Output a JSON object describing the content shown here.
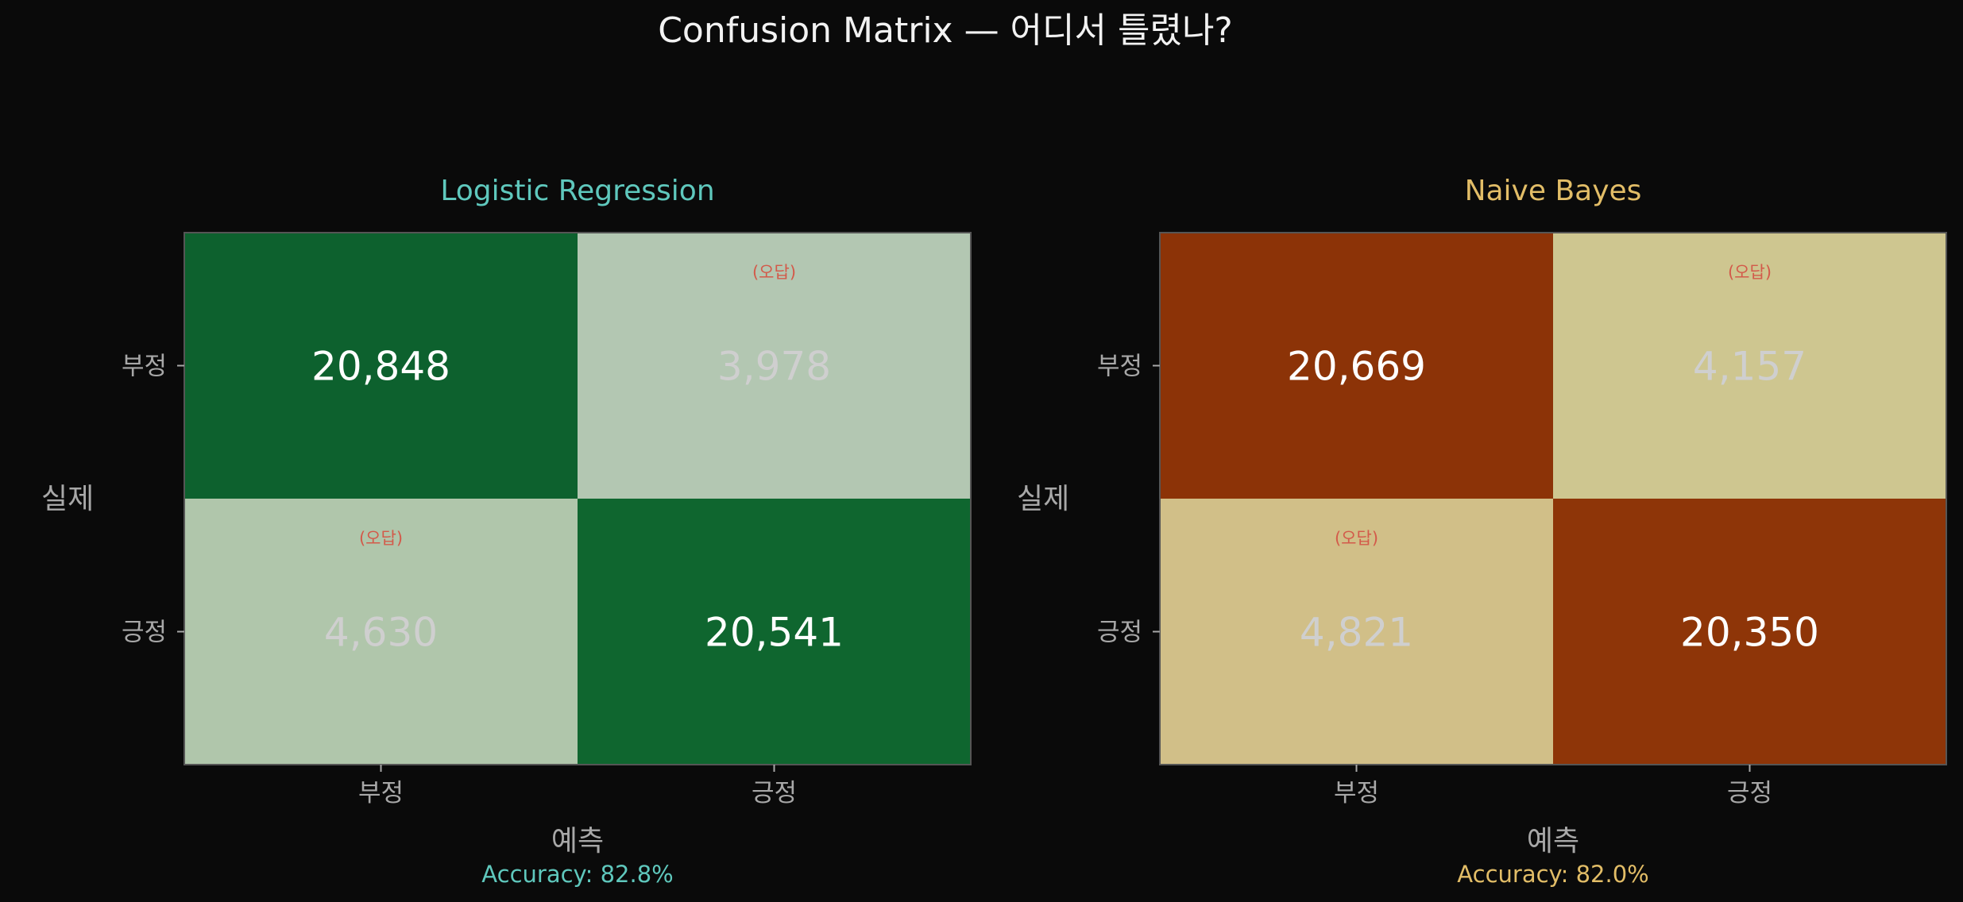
{
  "figure": {
    "title": "Confusion Matrix — 어디서 틀렸나?",
    "background": "#0a0a0a",
    "text_color": "#f2f2f2",
    "axis_color": "#a8a8a8",
    "error_color": "#d35a4a",
    "error_note": "(오답)"
  },
  "chart_data": [
    {
      "type": "heatmap",
      "title": "Logistic Regression",
      "title_color": "#5fc8bd",
      "xlabel": "예측",
      "ylabel": "실제",
      "x_categories": [
        "부정",
        "긍정"
      ],
      "y_categories": [
        "부정",
        "긍정"
      ],
      "values": [
        [
          20848,
          3978
        ],
        [
          4630,
          20541
        ]
      ],
      "value_labels": [
        [
          "20,848",
          "3,978"
        ],
        [
          "4,630",
          "20,541"
        ]
      ],
      "cell_colors": [
        [
          "#0d612e",
          "#b3c7b2"
        ],
        [
          "#b0c6ab",
          "#0f662f"
        ]
      ],
      "accuracy_label": "Accuracy: 82.8%",
      "accuracy": 82.8,
      "accuracy_color": "#5fc8bd"
    },
    {
      "type": "heatmap",
      "title": "Naive Bayes",
      "title_color": "#e2bd67",
      "xlabel": "예측",
      "ylabel": "실제",
      "x_categories": [
        "부정",
        "긍정"
      ],
      "y_categories": [
        "부정",
        "긍정"
      ],
      "values": [
        [
          20669,
          4157
        ],
        [
          4821,
          20350
        ]
      ],
      "value_labels": [
        [
          "20,669",
          "4,157"
        ],
        [
          "4,821",
          "20,350"
        ]
      ],
      "cell_colors": [
        [
          "#8c3307",
          "#cec690"
        ],
        [
          "#d1bf88",
          "#8e3508"
        ]
      ],
      "accuracy_label": "Accuracy: 82.0%",
      "accuracy": 82.0,
      "accuracy_color": "#e2bd67"
    }
  ]
}
